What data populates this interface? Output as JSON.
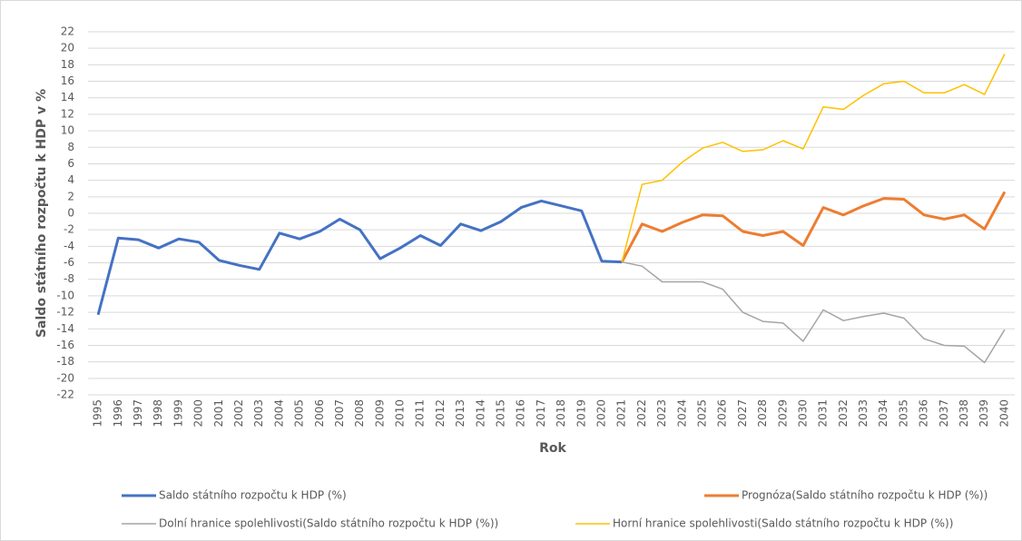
{
  "chart_data": {
    "type": "line",
    "y_label": "Saldo státního rozpočtu k HDP v %",
    "x_label": "Rok",
    "categories": [
      "1995",
      "1996",
      "1997",
      "1998",
      "1999",
      "2000",
      "2001",
      "2002",
      "2003",
      "2004",
      "2005",
      "2006",
      "2007",
      "2008",
      "2009",
      "2010",
      "2011",
      "2012",
      "2013",
      "2014",
      "2015",
      "2016",
      "2017",
      "2018",
      "2019",
      "2020",
      "2021",
      "2022",
      "2023",
      "2024",
      "2025",
      "2026",
      "2027",
      "2028",
      "2029",
      "2030",
      "2031",
      "2032",
      "2033",
      "2034",
      "2035",
      "2036",
      "2037",
      "2038",
      "2039",
      "2040"
    ],
    "series": [
      {
        "name": "Saldo státního rozpočtu k HDP (%)",
        "color": "#4472c4",
        "values": [
          -12.3,
          -3.0,
          -3.2,
          -4.2,
          -3.1,
          -3.5,
          -5.7,
          -6.3,
          -6.8,
          -2.4,
          -3.1,
          -2.2,
          -0.7,
          -2.0,
          -5.5,
          -4.2,
          -2.7,
          -3.9,
          -1.3,
          -2.1,
          -1.0,
          0.7,
          1.5,
          0.9,
          0.3,
          -5.8,
          -5.9,
          null,
          null,
          null,
          null,
          null,
          null,
          null,
          null,
          null,
          null,
          null,
          null,
          null,
          null,
          null,
          null,
          null,
          null,
          null
        ]
      },
      {
        "name": "Prognóza(Saldo státního rozpočtu k HDP (%))",
        "color": "#ed7d31",
        "values": [
          null,
          null,
          null,
          null,
          null,
          null,
          null,
          null,
          null,
          null,
          null,
          null,
          null,
          null,
          null,
          null,
          null,
          null,
          null,
          null,
          null,
          null,
          null,
          null,
          null,
          null,
          -5.9,
          -1.3,
          -2.2,
          -1.1,
          -0.2,
          -0.3,
          -2.2,
          -2.7,
          -2.2,
          -3.9,
          0.7,
          -0.2,
          0.9,
          1.8,
          1.7,
          -0.2,
          -0.7,
          -0.2,
          -1.9,
          2.6
        ]
      },
      {
        "name": "Dolní hranice spolehlivosti(Saldo státního rozpočtu k HDP (%))",
        "color": "#a5a5a5",
        "values": [
          null,
          null,
          null,
          null,
          null,
          null,
          null,
          null,
          null,
          null,
          null,
          null,
          null,
          null,
          null,
          null,
          null,
          null,
          null,
          null,
          null,
          null,
          null,
          null,
          null,
          null,
          -5.9,
          -6.4,
          -8.3,
          -8.3,
          -8.3,
          -9.2,
          -12.0,
          -13.1,
          -13.3,
          -15.5,
          -11.7,
          -13.0,
          -12.5,
          -12.1,
          -12.7,
          -15.2,
          -16.0,
          -16.1,
          -18.1,
          -14.1
        ]
      },
      {
        "name": "Horní hranice spolehlivosti(Saldo státního rozpočtu k HDP (%))",
        "color": "#ffc000",
        "values": [
          null,
          null,
          null,
          null,
          null,
          null,
          null,
          null,
          null,
          null,
          null,
          null,
          null,
          null,
          null,
          null,
          null,
          null,
          null,
          null,
          null,
          null,
          null,
          null,
          null,
          null,
          -5.9,
          3.5,
          4.0,
          6.2,
          7.9,
          8.6,
          7.5,
          7.7,
          8.8,
          7.8,
          12.9,
          12.6,
          14.3,
          15.7,
          16.0,
          14.6,
          14.6,
          15.6,
          14.4,
          19.3
        ]
      }
    ],
    "ylim": [
      -22,
      22
    ],
    "yticks": [
      22,
      20,
      18,
      16,
      14,
      12,
      10,
      8,
      6,
      4,
      2,
      0,
      -2,
      -4,
      -6,
      -8,
      -10,
      -12,
      -14,
      -16,
      -18,
      -20,
      -22
    ],
    "grid": true
  }
}
